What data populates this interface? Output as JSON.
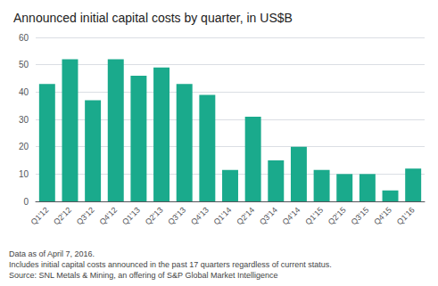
{
  "chart_data": {
    "type": "bar",
    "title": "Announced initial capital costs by quarter, in US$B",
    "categories": [
      "Q1'12",
      "Q2'12",
      "Q3'12",
      "Q4'12",
      "Q1'13",
      "Q2'13",
      "Q3'13",
      "Q4'13",
      "Q1'14",
      "Q2'14",
      "Q3'14",
      "Q4'14",
      "Q1'15",
      "Q2'15",
      "Q3'15",
      "Q4'15",
      "Q1'16"
    ],
    "values": [
      43,
      52,
      37,
      52,
      46,
      49,
      43,
      39,
      11.5,
      31,
      15,
      20,
      11.5,
      10,
      10,
      4,
      12
    ],
    "color": "#1aaa8c",
    "ylim": [
      0,
      60
    ],
    "yticks": [
      0,
      10,
      20,
      30,
      40,
      50,
      60
    ],
    "grid": true,
    "annotations": [
      "Data as of April 7, 2016.",
      "Includes initial capital costs announced in the past 17 quarters regardless of current status.",
      "Source: SNL Metals & Mining, an offering of S&P Global Market Intelligence"
    ]
  }
}
